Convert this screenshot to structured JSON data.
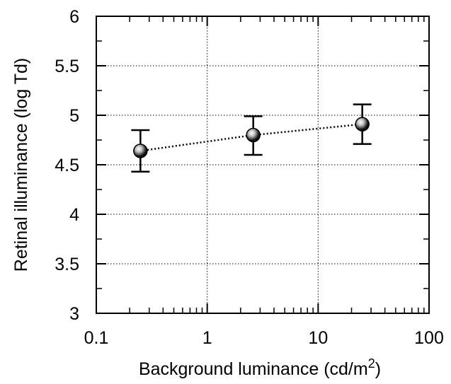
{
  "chart_data": {
    "type": "scatter",
    "title": "",
    "xlabel": "Background luminance (cd/m",
    "xlabel_superscript": "2",
    "xlabel_suffix": ")",
    "ylabel": "Retinal illuminance (log Td)",
    "xscale": "log",
    "xlim": [
      0.1,
      100
    ],
    "ylim": [
      3,
      6
    ],
    "xticks": [
      "0.1",
      "1",
      "10",
      "100"
    ],
    "yticks": [
      "3",
      "3.5",
      "4",
      "4.5",
      "5",
      "5.5",
      "6"
    ],
    "grid": true,
    "grid_style": "dotted",
    "series": [
      {
        "x": [
          0.25,
          2.6,
          25
        ],
        "y": [
          4.64,
          4.8,
          4.91
        ],
        "y_err_low": [
          4.43,
          4.6,
          4.71
        ],
        "y_err_high": [
          4.85,
          4.99,
          5.11
        ],
        "line_style": "dotted"
      }
    ],
    "colors": {
      "axis": "#000000",
      "marker": "#000000"
    }
  }
}
